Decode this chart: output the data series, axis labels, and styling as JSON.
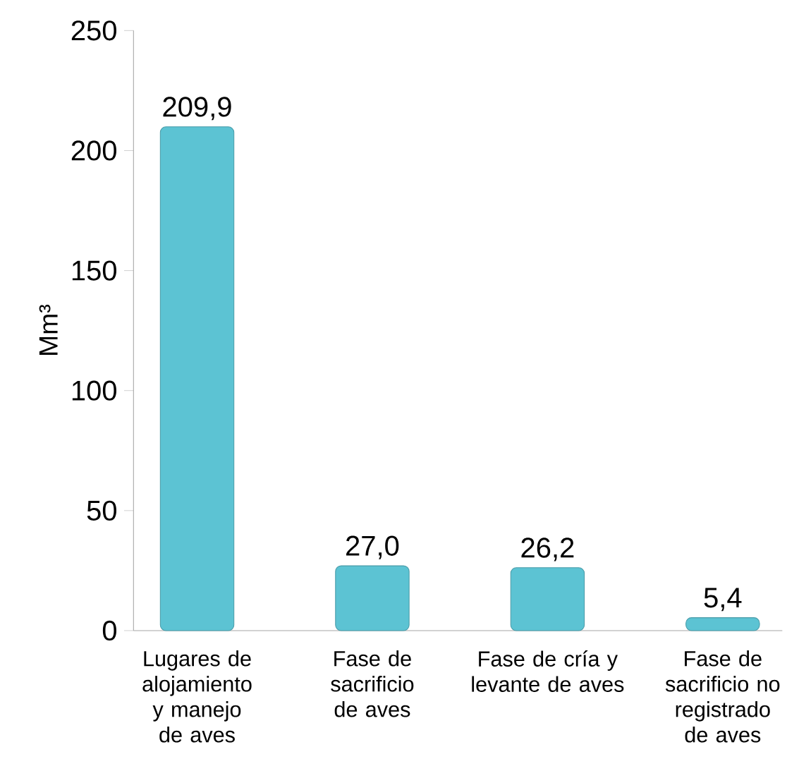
{
  "chart_data": {
    "type": "bar",
    "categories": [
      "Lugares de alojamiento y manejo de aves",
      "Fase de sacrificio de aves",
      "Fase de cría y levante de aves",
      "Fase de sacrificio no registrado de aves"
    ],
    "values": [
      209.9,
      27.0,
      26.2,
      5.4
    ],
    "value_labels": [
      "209,9",
      "27,0",
      "26,2",
      "5,4"
    ],
    "color": "#5cc3d3",
    "ylabel": "Mm³",
    "ylim": [
      0,
      250
    ],
    "yticks": [
      0,
      50,
      100,
      150,
      200,
      250
    ]
  }
}
